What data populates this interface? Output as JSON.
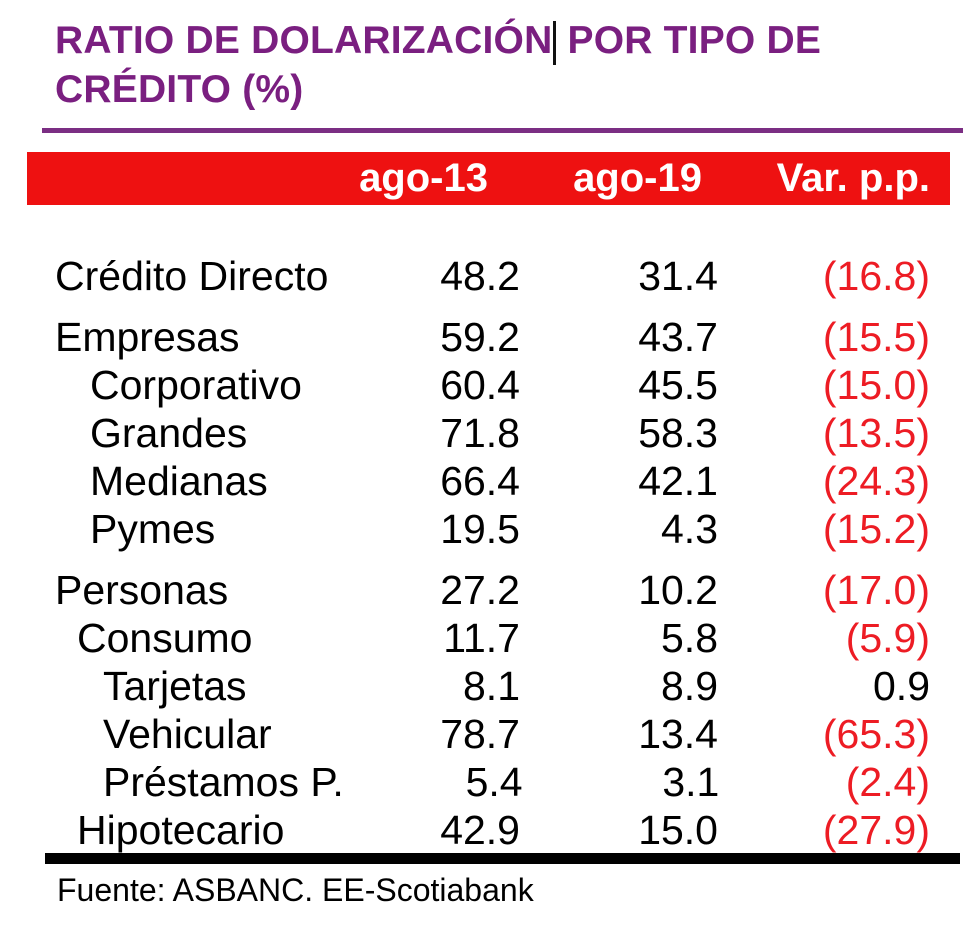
{
  "title": {
    "part1": "RATIO DE DOLARIZACIÓN",
    "part2": " POR TIPO DE\nCRÉDITO (%)"
  },
  "header": {
    "columns": [
      "ago-13",
      "ago-19",
      "Var. p.p."
    ]
  },
  "table": {
    "rows": [
      {
        "label": "Crédito Directo",
        "indent": 0,
        "group_gap": false,
        "values": [
          "48.2",
          "31.4",
          "(16.8)"
        ],
        "negative": true
      },
      {
        "label": "Empresas",
        "indent": 0,
        "group_gap": true,
        "values": [
          "59.2",
          "43.7",
          "(15.5)"
        ],
        "negative": true
      },
      {
        "label": "Corporativo",
        "indent": 2,
        "group_gap": false,
        "values": [
          "60.4",
          "45.5",
          "(15.0)"
        ],
        "negative": true
      },
      {
        "label": "Grandes",
        "indent": 2,
        "group_gap": false,
        "values": [
          "71.8",
          "58.3",
          "(13.5)"
        ],
        "negative": true
      },
      {
        "label": "Medianas",
        "indent": 2,
        "group_gap": false,
        "values": [
          "66.4",
          "42.1",
          "(24.3)"
        ],
        "negative": true
      },
      {
        "label": "Pymes",
        "indent": 2,
        "group_gap": false,
        "values": [
          "19.5",
          "4.3",
          "(15.2)"
        ],
        "negative": true
      },
      {
        "label": "Personas",
        "indent": 0,
        "group_gap": true,
        "values": [
          "27.2",
          "10.2",
          "(17.0)"
        ],
        "negative": true
      },
      {
        "label": "Consumo",
        "indent": 1,
        "group_gap": false,
        "values": [
          "11.7",
          "5.8",
          "(5.9)"
        ],
        "negative": true
      },
      {
        "label": "Tarjetas",
        "indent": 3,
        "group_gap": false,
        "values": [
          "8.1",
          "8.9",
          "0.9"
        ],
        "negative": false
      },
      {
        "label": "Vehicular",
        "indent": 3,
        "group_gap": false,
        "values": [
          "78.7",
          "13.4",
          "(65.3)"
        ],
        "negative": true
      },
      {
        "label": "Préstamos P.",
        "indent": 3,
        "group_gap": false,
        "values": [
          "5.4",
          "3.1",
          "(2.4)"
        ],
        "negative": true
      },
      {
        "label": "Hipotecario",
        "indent": 1,
        "group_gap": false,
        "values": [
          "42.9",
          "15.0",
          "(27.9)"
        ],
        "negative": true
      }
    ]
  },
  "footer": {
    "source": "Fuente: ASBANC. EE-Scotiabank"
  },
  "colors": {
    "title_purple": "#7a1f80",
    "rule_purple": "#7b2e83",
    "header_red": "#ee1111",
    "negative_red": "#ed1c24",
    "text_black": "#000000"
  },
  "chart_data": {
    "type": "table",
    "title": "RATIO DE DOLARIZACIÓN POR TIPO DE CRÉDITO (%)",
    "columns": [
      "",
      "ago-13",
      "ago-19",
      "Var. p.p."
    ],
    "rows": [
      {
        "label": "Crédito Directo",
        "level": 0,
        "ago13": 48.2,
        "ago19": 31.4,
        "var_pp": -16.8
      },
      {
        "label": "Empresas",
        "level": 0,
        "ago13": 59.2,
        "ago19": 43.7,
        "var_pp": -15.5
      },
      {
        "label": "Corporativo",
        "level": 1,
        "ago13": 60.4,
        "ago19": 45.5,
        "var_pp": -15.0
      },
      {
        "label": "Grandes",
        "level": 1,
        "ago13": 71.8,
        "ago19": 58.3,
        "var_pp": -13.5
      },
      {
        "label": "Medianas",
        "level": 1,
        "ago13": 66.4,
        "ago19": 42.1,
        "var_pp": -24.3
      },
      {
        "label": "Pymes",
        "level": 1,
        "ago13": 19.5,
        "ago19": 4.3,
        "var_pp": -15.2
      },
      {
        "label": "Personas",
        "level": 0,
        "ago13": 27.2,
        "ago19": 10.2,
        "var_pp": -17.0
      },
      {
        "label": "Consumo",
        "level": 1,
        "ago13": 11.7,
        "ago19": 5.8,
        "var_pp": -5.9
      },
      {
        "label": "Tarjetas",
        "level": 2,
        "ago13": 8.1,
        "ago19": 8.9,
        "var_pp": 0.9
      },
      {
        "label": "Vehicular",
        "level": 2,
        "ago13": 78.7,
        "ago19": 13.4,
        "var_pp": -65.3
      },
      {
        "label": "Préstamos P.",
        "level": 2,
        "ago13": 5.4,
        "ago19": 3.1,
        "var_pp": -2.4
      },
      {
        "label": "Hipotecario",
        "level": 1,
        "ago13": 42.9,
        "ago19": 15.0,
        "var_pp": -27.9
      }
    ],
    "source": "Fuente: ASBANC. EE-Scotiabank",
    "notes": "Negative variations shown in red within parentheses; values are percentages."
  }
}
